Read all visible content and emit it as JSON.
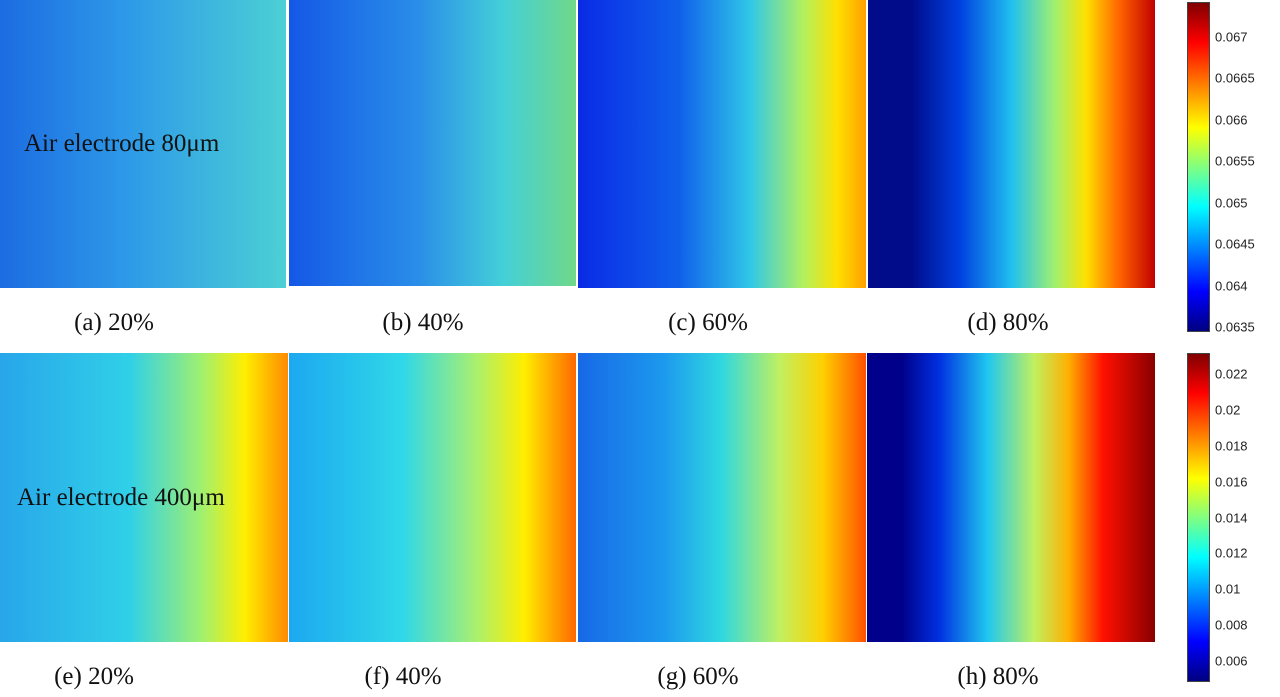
{
  "rows": [
    {
      "annotation": "Air electrode 80μm",
      "panels": [
        "(a) 20%",
        "(b) 40%",
        "(c) 60%",
        "(d) 80%"
      ],
      "colorbar_ticks": [
        0.067,
        0.0665,
        0.066,
        0.0655,
        0.065,
        0.0645,
        0.064,
        0.0635
      ]
    },
    {
      "annotation": "Air electrode 400μm",
      "panels": [
        "(e) 20%",
        "(f) 40%",
        "(g) 60%",
        "(h) 80%"
      ],
      "colorbar_ticks": [
        0.022,
        0.02,
        0.018,
        0.016,
        0.014,
        0.012,
        0.01,
        0.008,
        0.006
      ]
    }
  ]
}
